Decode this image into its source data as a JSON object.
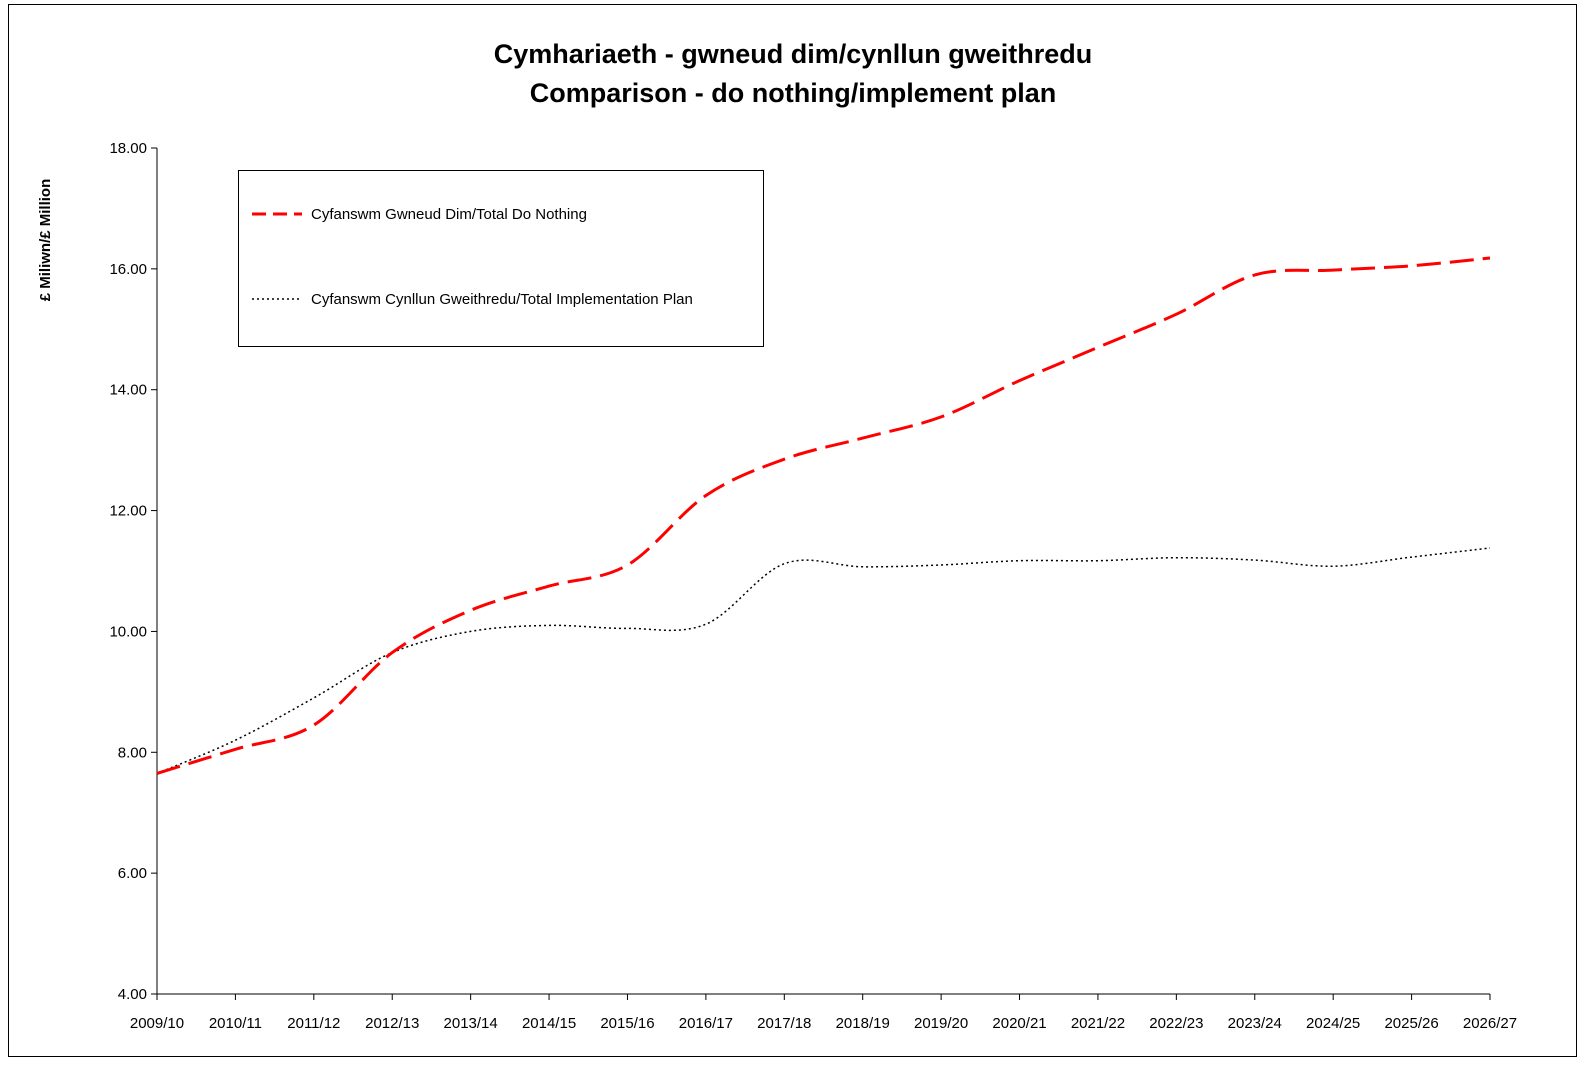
{
  "chart_data": {
    "type": "line",
    "title": "Cymhariaeth - gwneud dim/cynllun gweithredu",
    "subtitle": "Comparison - do nothing/implement plan",
    "ylabel": "£ Miliwn/£ Million",
    "xlabel": "",
    "ylim": [
      4,
      18
    ],
    "yticks": [
      "4.00",
      "6.00",
      "8.00",
      "10.00",
      "12.00",
      "14.00",
      "16.00",
      "18.00"
    ],
    "categories": [
      "2009/10",
      "2010/11",
      "2011/12",
      "2012/13",
      "2013/14",
      "2014/15",
      "2015/16",
      "2016/17",
      "2017/18",
      "2018/19",
      "2019/20",
      "2020/21",
      "2021/22",
      "2022/23",
      "2023/24",
      "2024/25",
      "2025/26",
      "2026/27"
    ],
    "grid": false,
    "legend": "top-left",
    "series": [
      {
        "name": "Cyfanswm Gwneud Dim/Total Do Nothing",
        "color": "#ff0000",
        "style": "dashed",
        "values": [
          7.65,
          8.05,
          8.45,
          9.65,
          10.35,
          10.75,
          11.1,
          12.25,
          12.85,
          13.2,
          13.55,
          14.15,
          14.7,
          15.25,
          15.9,
          15.98,
          16.05,
          16.18
        ]
      },
      {
        "name": "Cyfanswm Cynllun Gweithredu/Total Implementation Plan",
        "color": "#000000",
        "style": "dotted",
        "values": [
          7.65,
          8.2,
          8.9,
          9.65,
          10.0,
          10.1,
          10.05,
          10.12,
          11.12,
          11.07,
          11.1,
          11.17,
          11.17,
          11.22,
          11.18,
          11.08,
          11.23,
          11.38
        ]
      }
    ]
  }
}
